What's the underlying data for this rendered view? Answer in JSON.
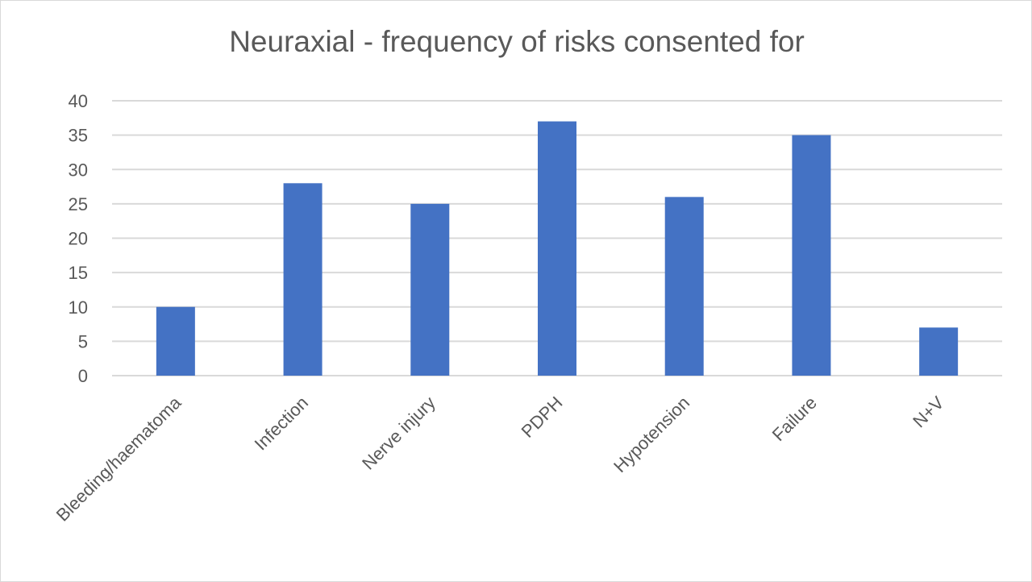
{
  "chart_data": {
    "type": "bar",
    "title": "Neuraxial - frequency of risks consented for",
    "categories": [
      "Bleeding/haematoma",
      "Infection",
      "Nerve injury",
      "PDPH",
      "Hypotension",
      "Failure",
      "N+V"
    ],
    "values": [
      10,
      28,
      25,
      37,
      26,
      35,
      7
    ],
    "yticks": [
      0,
      5,
      10,
      15,
      20,
      25,
      30,
      35,
      40
    ],
    "ylim": [
      0,
      40
    ],
    "grid": true,
    "legend": "none",
    "bar_color": "#4472c4",
    "gridline_color": "#d9d9d9"
  }
}
